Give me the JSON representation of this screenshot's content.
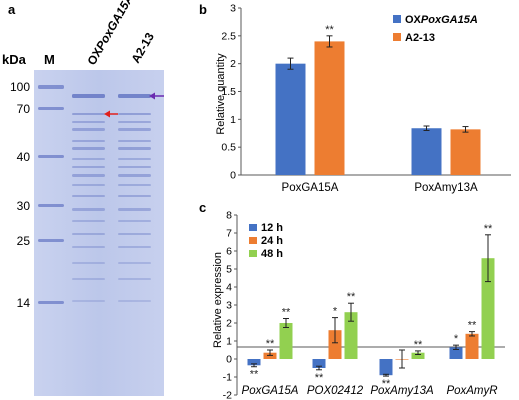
{
  "panels": {
    "a": {
      "letter": "a",
      "kda_label": "kDa",
      "marker_label": "M",
      "lane_labels": [
        {
          "prefix": "OX",
          "italic": "PoxGA15A"
        },
        {
          "prefix": "A2-13",
          "italic": ""
        }
      ],
      "marker_sizes": [
        "100",
        "70",
        "40",
        "30",
        "25",
        "14"
      ],
      "arrow_colors": {
        "red": "#e0201c",
        "purple": "#6a2bb0"
      },
      "gel_color": "#c2ccec",
      "band_color": "#6f80c8"
    },
    "b": {
      "letter": "b",
      "ylabel": "Relative quantity",
      "legend": [
        {
          "prefix": "OX",
          "italic": "PoxGA15A",
          "color": "#4472c4"
        },
        {
          "prefix": "A2-13",
          "italic": "",
          "color": "#ed7d31"
        }
      ]
    },
    "c": {
      "letter": "c",
      "ylabel": "Relative expression",
      "legend": [
        {
          "label": "12 h",
          "color": "#4472c4"
        },
        {
          "label": "24 h",
          "color": "#ed7d31"
        },
        {
          "label": "48 h",
          "color": "#92d050"
        }
      ]
    }
  },
  "chart_data": [
    {
      "type": "bar",
      "panel": "b",
      "title": "",
      "xlabel": "",
      "ylabel": "Relative quantity",
      "categories": [
        "PoxGA15A",
        "PoxAmy13A"
      ],
      "series": [
        {
          "name": "OXPoxGA15A",
          "values": [
            2.0,
            0.84
          ],
          "errors": [
            0.1,
            0.04
          ],
          "color": "#4472c4",
          "annotations": [
            "",
            ""
          ]
        },
        {
          "name": "A2-13",
          "values": [
            2.4,
            0.82
          ],
          "errors": [
            0.1,
            0.05
          ],
          "color": "#ed7d31",
          "annotations": [
            "**",
            ""
          ]
        }
      ],
      "ylim": [
        0,
        3
      ],
      "yticks": [
        "0",
        "0.5",
        "1",
        "1.5",
        "2",
        "2.5",
        "3"
      ],
      "legend": "top-right",
      "grid": false
    },
    {
      "type": "bar",
      "panel": "c",
      "title": "",
      "xlabel": "",
      "ylabel": "Relative expression",
      "categories": [
        "PoxGA15A",
        "POX02412",
        "PoxAmy13A",
        "PoxAmyR"
      ],
      "series": [
        {
          "name": "12 h",
          "values": [
            -0.35,
            -0.5,
            -0.9,
            0.65
          ],
          "errors": [
            0.08,
            0.1,
            0.05,
            0.12
          ],
          "color": "#4472c4",
          "annotations": [
            "**",
            "**",
            "**",
            "*"
          ]
        },
        {
          "name": "24 h",
          "values": [
            0.35,
            1.6,
            0.0,
            1.4
          ],
          "errors": [
            0.15,
            0.7,
            0.5,
            0.12
          ],
          "color": "#ed7d31",
          "annotations": [
            "**",
            "*",
            "",
            "**"
          ]
        },
        {
          "name": "48 h",
          "values": [
            2.0,
            2.6,
            0.35,
            5.6
          ],
          "errors": [
            0.25,
            0.5,
            0.1,
            1.3
          ],
          "color": "#92d050",
          "annotations": [
            "**",
            "**",
            "**",
            "**"
          ]
        }
      ],
      "ylim": [
        -2,
        8
      ],
      "yticks": [
        "-2",
        "-1",
        "0",
        "1",
        "2",
        "3",
        "4",
        "5",
        "6",
        "7",
        "8"
      ],
      "legend": "top-left",
      "grid": false
    }
  ]
}
